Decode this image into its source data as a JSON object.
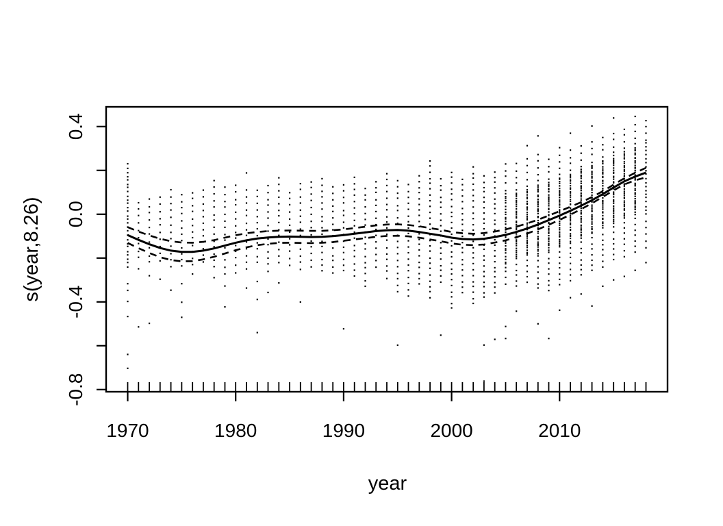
{
  "figure": {
    "background_color": "#ffffff",
    "foreground_color": "#000000",
    "description": "GAM smooth term plot: partial effect of year with dashed 95% confidence bands, partial residual dots and data rug"
  },
  "chart_data": {
    "type": "scatter",
    "title": "",
    "xlabel": "year",
    "ylabel": "s(year,8.26)",
    "xlim": [
      1968,
      2020
    ],
    "ylim": [
      -0.81,
      0.49
    ],
    "grid": false,
    "legend": "none",
    "x_ticks": [
      {
        "v": 1970,
        "label": "1970"
      },
      {
        "v": 1980,
        "label": "1980"
      },
      {
        "v": 1990,
        "label": "1990"
      },
      {
        "v": 2000,
        "label": "2000"
      },
      {
        "v": 2010,
        "label": "2010"
      }
    ],
    "y_ticks": [
      {
        "v": -0.8,
        "label": "-0.8"
      },
      {
        "v": -0.6,
        "label": ""
      },
      {
        "v": -0.4,
        "label": "-0.4"
      },
      {
        "v": -0.2,
        "label": ""
      },
      {
        "v": 0.0,
        "label": "0.0"
      },
      {
        "v": 0.2,
        "label": ""
      },
      {
        "v": 0.4,
        "label": "0.4"
      }
    ],
    "smooth": {
      "name": "smooth fit s(year)",
      "x_start": 1970,
      "x_step": 1,
      "y": [
        -0.095,
        -0.117,
        -0.137,
        -0.154,
        -0.166,
        -0.172,
        -0.172,
        -0.166,
        -0.156,
        -0.143,
        -0.13,
        -0.119,
        -0.111,
        -0.106,
        -0.103,
        -0.102,
        -0.103,
        -0.104,
        -0.103,
        -0.1,
        -0.095,
        -0.089,
        -0.083,
        -0.077,
        -0.073,
        -0.072,
        -0.075,
        -0.081,
        -0.089,
        -0.097,
        -0.107,
        -0.113,
        -0.115,
        -0.112,
        -0.104,
        -0.094,
        -0.081,
        -0.065,
        -0.047,
        -0.027,
        -0.006,
        0.016,
        0.039,
        0.064,
        0.092,
        0.122,
        0.15,
        0.172,
        0.19
      ]
    },
    "ci_halfwidth": [
      0.036,
      0.038,
      0.04,
      0.042,
      0.043,
      0.043,
      0.042,
      0.04,
      0.038,
      0.036,
      0.034,
      0.032,
      0.03,
      0.029,
      0.028,
      0.028,
      0.028,
      0.028,
      0.027,
      0.027,
      0.026,
      0.026,
      0.026,
      0.026,
      0.026,
      0.026,
      0.026,
      0.026,
      0.026,
      0.026,
      0.026,
      0.026,
      0.026,
      0.026,
      0.025,
      0.025,
      0.024,
      0.023,
      0.022,
      0.021,
      0.02,
      0.018,
      0.016,
      0.014,
      0.013,
      0.013,
      0.014,
      0.017,
      0.022
    ],
    "ci_style": "dashed",
    "rug": {
      "from": 1970,
      "to": 2018,
      "step": 1
    },
    "residual_columns": [
      {
        "year": 1970,
        "seg": [
          [
            -0.24,
            0.23,
            0.018
          ]
        ],
        "pts": [
          -0.32,
          -0.35,
          -0.4,
          -0.47,
          -0.64,
          -0.7
        ]
      },
      {
        "year": 1971,
        "seg": [
          [
            -0.2,
            0.06,
            0.032
          ]
        ],
        "pts": [
          -0.25,
          -0.51
        ]
      },
      {
        "year": 1972,
        "seg": [
          [
            -0.22,
            0.08,
            0.032
          ]
        ],
        "pts": [
          -0.28,
          -0.5
        ]
      },
      {
        "year": 1973,
        "seg": [
          [
            -0.21,
            0.1,
            0.032
          ]
        ],
        "pts": [
          -0.3
        ]
      },
      {
        "year": 1974,
        "seg": [
          [
            -0.24,
            0.12,
            0.032
          ]
        ],
        "pts": [
          -0.35
        ]
      },
      {
        "year": 1975,
        "seg": [
          [
            -0.24,
            0.09,
            0.03
          ]
        ],
        "pts": [
          -0.32,
          -0.4,
          -0.47
        ]
      },
      {
        "year": 1976,
        "seg": [
          [
            -0.23,
            0.11,
            0.03
          ]
        ],
        "pts": [
          -0.27
        ]
      },
      {
        "year": 1977,
        "seg": [
          [
            -0.22,
            0.13,
            0.03
          ]
        ],
        "pts": []
      },
      {
        "year": 1978,
        "seg": [
          [
            -0.24,
            0.15,
            0.03
          ]
        ],
        "pts": [
          -0.29
        ]
      },
      {
        "year": 1979,
        "seg": [
          [
            -0.27,
            0.12,
            0.03
          ]
        ],
        "pts": [
          -0.33,
          -0.42
        ]
      },
      {
        "year": 1980,
        "seg": [
          [
            -0.23,
            0.14,
            0.03
          ]
        ],
        "pts": [
          -0.27
        ]
      },
      {
        "year": 1981,
        "seg": [
          [
            -0.25,
            0.12,
            0.03
          ]
        ],
        "pts": [
          -0.34,
          0.19
        ]
      },
      {
        "year": 1982,
        "seg": [
          [
            -0.22,
            0.13,
            0.03
          ]
        ],
        "pts": [
          -0.31,
          -0.39,
          -0.54
        ]
      },
      {
        "year": 1983,
        "seg": [
          [
            -0.26,
            0.15,
            0.03
          ]
        ],
        "pts": [
          -0.36
        ]
      },
      {
        "year": 1984,
        "seg": [
          [
            -0.22,
            0.17,
            0.03
          ]
        ],
        "pts": [
          -0.31
        ]
      },
      {
        "year": 1985,
        "seg": [
          [
            -0.23,
            0.12,
            0.03
          ]
        ],
        "pts": []
      },
      {
        "year": 1986,
        "seg": [
          [
            -0.25,
            0.14,
            0.03
          ]
        ],
        "pts": [
          -0.4
        ]
      },
      {
        "year": 1987,
        "seg": [
          [
            -0.24,
            0.16,
            0.03
          ]
        ],
        "pts": []
      },
      {
        "year": 1988,
        "seg": [
          [
            -0.26,
            0.16,
            0.028
          ]
        ],
        "pts": []
      },
      {
        "year": 1989,
        "seg": [
          [
            -0.27,
            0.13,
            0.028
          ]
        ],
        "pts": []
      },
      {
        "year": 1990,
        "seg": [
          [
            -0.26,
            0.15,
            0.028
          ]
        ],
        "pts": [
          -0.52
        ]
      },
      {
        "year": 1991,
        "seg": [
          [
            -0.28,
            0.18,
            0.028
          ]
        ],
        "pts": []
      },
      {
        "year": 1992,
        "seg": [
          [
            -0.33,
            0.14,
            0.028
          ]
        ],
        "pts": []
      },
      {
        "year": 1993,
        "seg": [
          [
            -0.24,
            0.16,
            0.028
          ]
        ],
        "pts": []
      },
      {
        "year": 1994,
        "seg": [
          [
            -0.29,
            0.19,
            0.028
          ]
        ],
        "pts": []
      },
      {
        "year": 1995,
        "seg": [
          [
            -0.35,
            0.17,
            0.028
          ]
        ],
        "pts": [
          -0.6
        ]
      },
      {
        "year": 1996,
        "seg": [
          [
            -0.37,
            0.15,
            0.028
          ]
        ],
        "pts": []
      },
      {
        "year": 1997,
        "seg": [
          [
            -0.32,
            0.18,
            0.026
          ]
        ],
        "pts": []
      },
      {
        "year": 1998,
        "seg": [
          [
            -0.38,
            0.25,
            0.026
          ]
        ],
        "pts": []
      },
      {
        "year": 1999,
        "seg": [
          [
            -0.31,
            0.17,
            0.026
          ]
        ],
        "pts": [
          -0.55
        ]
      },
      {
        "year": 2000,
        "seg": [
          [
            -0.43,
            0.2,
            0.026
          ]
        ],
        "pts": []
      },
      {
        "year": 2001,
        "seg": [
          [
            -0.36,
            0.18,
            0.026
          ]
        ],
        "pts": []
      },
      {
        "year": 2002,
        "seg": [
          [
            -0.41,
            0.22,
            0.026
          ]
        ],
        "pts": []
      },
      {
        "year": 2003,
        "seg": [
          [
            -0.38,
            0.19,
            0.024
          ]
        ],
        "pts": [
          -0.6,
          -0.76
        ]
      },
      {
        "year": 2004,
        "seg": [
          [
            -0.36,
            0.21,
            0.024
          ]
        ],
        "pts": [
          -0.57
        ]
      },
      {
        "year": 2005,
        "seg": [
          [
            -0.24,
            0.1,
            0.012
          ],
          [
            -0.32,
            -0.25,
            0.03
          ],
          [
            0.11,
            0.23,
            0.03
          ]
        ],
        "pts": [
          -0.51,
          -0.57
        ]
      },
      {
        "year": 2006,
        "seg": [
          [
            -0.2,
            0.1,
            0.009
          ],
          [
            -0.33,
            -0.21,
            0.025
          ],
          [
            0.11,
            0.24,
            0.03
          ]
        ],
        "pts": [
          -0.44
        ]
      },
      {
        "year": 2007,
        "seg": [
          [
            -0.19,
            0.12,
            0.009
          ],
          [
            -0.31,
            -0.2,
            0.025
          ],
          [
            0.13,
            0.26,
            0.03
          ]
        ],
        "pts": [
          0.31
        ]
      },
      {
        "year": 2008,
        "seg": [
          [
            -0.18,
            0.14,
            0.009
          ],
          [
            -0.34,
            -0.19,
            0.025
          ],
          [
            0.15,
            0.28,
            0.03
          ]
        ],
        "pts": [
          -0.5,
          0.36
        ]
      },
      {
        "year": 2009,
        "seg": [
          [
            -0.17,
            0.15,
            0.009
          ],
          [
            -0.35,
            -0.18,
            0.025
          ],
          [
            0.16,
            0.27,
            0.03
          ]
        ],
        "pts": [
          -0.57
        ]
      },
      {
        "year": 2010,
        "seg": [
          [
            -0.15,
            0.17,
            0.009
          ],
          [
            -0.32,
            -0.16,
            0.025
          ],
          [
            0.18,
            0.3,
            0.03
          ]
        ],
        "pts": [
          -0.44
        ]
      },
      {
        "year": 2011,
        "seg": [
          [
            -0.13,
            0.19,
            0.009
          ],
          [
            -0.3,
            -0.14,
            0.025
          ],
          [
            0.2,
            0.31,
            0.03
          ]
        ],
        "pts": [
          -0.38,
          0.37
        ]
      },
      {
        "year": 2012,
        "seg": [
          [
            -0.11,
            0.21,
            0.009
          ],
          [
            -0.28,
            -0.12,
            0.025
          ],
          [
            0.22,
            0.33,
            0.03
          ]
        ],
        "pts": [
          -0.36
        ]
      },
      {
        "year": 2013,
        "seg": [
          [
            -0.09,
            0.23,
            0.009
          ],
          [
            -0.26,
            -0.1,
            0.025
          ],
          [
            0.24,
            0.35,
            0.03
          ]
        ],
        "pts": [
          -0.42,
          0.4
        ]
      },
      {
        "year": 2014,
        "seg": [
          [
            -0.06,
            0.25,
            0.009
          ],
          [
            -0.24,
            -0.07,
            0.025
          ],
          [
            0.26,
            0.36,
            0.03
          ]
        ],
        "pts": [
          -0.33
        ]
      },
      {
        "year": 2015,
        "seg": [
          [
            -0.04,
            0.27,
            0.009
          ],
          [
            -0.21,
            -0.05,
            0.025
          ],
          [
            0.28,
            0.38,
            0.03
          ]
        ],
        "pts": [
          -0.3,
          0.44
        ]
      },
      {
        "year": 2016,
        "seg": [
          [
            -0.02,
            0.29,
            0.009
          ],
          [
            -0.19,
            -0.03,
            0.025
          ],
          [
            0.3,
            0.4,
            0.03
          ]
        ],
        "pts": [
          -0.28
        ]
      },
      {
        "year": 2017,
        "seg": [
          [
            0.0,
            0.31,
            0.009
          ],
          [
            -0.17,
            -0.01,
            0.025
          ],
          [
            0.32,
            0.42,
            0.03
          ]
        ],
        "pts": [
          -0.26,
          0.45
        ]
      },
      {
        "year": 2018,
        "seg": [
          [
            0.02,
            0.33,
            0.018
          ],
          [
            -0.15,
            0.01,
            0.03
          ],
          [
            0.34,
            0.44,
            0.03
          ]
        ],
        "pts": [
          -0.22
        ]
      }
    ]
  }
}
